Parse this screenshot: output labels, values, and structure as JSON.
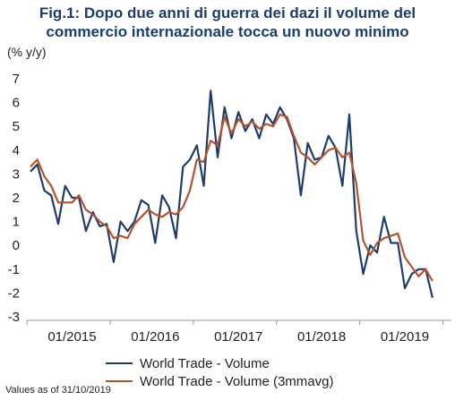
{
  "title_line1": "Fig.1: Dopo due anni di guerra dei dazi il volume del",
  "title_line2": "commercio internazionale tocca un nuovo minimo",
  "footnote": "Values as of 31/10/2019",
  "chart_data": {
    "type": "line",
    "ylabel": "(% y/y)",
    "ylim": [
      -3,
      7
    ],
    "yticks": [
      -3,
      -2,
      -1,
      0,
      1,
      2,
      3,
      4,
      5,
      6,
      7
    ],
    "x_start": "2014-07",
    "x_tick_labels": [
      "01/2015",
      "01/2016",
      "01/2017",
      "01/2018",
      "01/2019"
    ],
    "legend_position": "bottom",
    "grid": false,
    "series": [
      {
        "name": "World Trade - Volume",
        "color": "#1c3d6e",
        "values": [
          3.1,
          3.4,
          2.3,
          2.1,
          0.9,
          2.5,
          2.0,
          2.0,
          0.6,
          1.4,
          0.8,
          0.9,
          -0.7,
          1.0,
          0.6,
          1.0,
          1.9,
          1.7,
          0.1,
          2.1,
          1.6,
          0.3,
          3.3,
          3.6,
          4.2,
          2.5,
          6.5,
          3.7,
          5.8,
          4.5,
          5.6,
          4.8,
          5.3,
          4.5,
          5.5,
          5.1,
          5.8,
          5.3,
          4.5,
          2.1,
          4.3,
          3.6,
          3.7,
          4.6,
          4.1,
          2.5,
          5.5,
          0.6,
          -1.2,
          0.0,
          -0.3,
          1.2,
          0.1,
          0.1,
          -1.8,
          -1.2,
          -1.0,
          -1.0,
          -2.2
        ]
      },
      {
        "name": "World Trade - Volume (3mmavg)",
        "color": "#b5532a",
        "values": [
          3.3,
          3.6,
          2.9,
          2.5,
          1.8,
          1.8,
          1.8,
          2.1,
          1.5,
          1.3,
          1.0,
          0.8,
          0.3,
          0.4,
          0.3,
          0.9,
          1.2,
          1.5,
          1.3,
          1.2,
          1.4,
          1.3,
          1.6,
          2.3,
          3.6,
          3.5,
          4.4,
          4.2,
          5.4,
          4.7,
          5.3,
          5.0,
          5.2,
          4.9,
          5.1,
          5.0,
          5.5,
          5.4,
          4.6,
          3.9,
          3.7,
          3.4,
          3.7,
          4.0,
          4.1,
          3.7,
          3.9,
          2.6,
          0.2,
          -0.4,
          0.1,
          0.3,
          0.4,
          0.5,
          -0.5,
          -0.9,
          -1.3,
          -1.0,
          -1.5
        ]
      }
    ]
  }
}
